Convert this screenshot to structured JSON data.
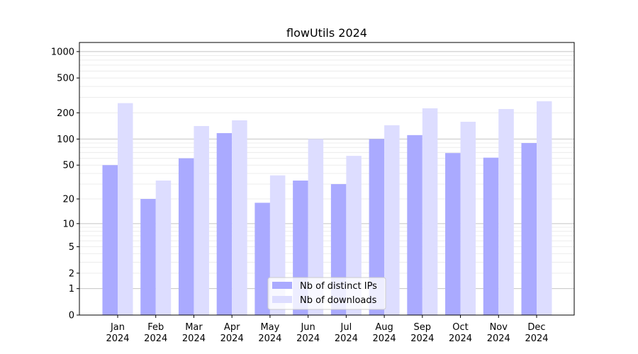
{
  "chart_data": {
    "type": "bar",
    "title": "flowUtils 2024",
    "xlabel": "",
    "ylabel": "",
    "yscale": "log(1+y)",
    "ylim": [
      0,
      1270
    ],
    "yticks": [
      0,
      1,
      2,
      5,
      10,
      20,
      50,
      100,
      200,
      500,
      1000
    ],
    "ytick_labels": [
      "0",
      "1",
      "2",
      "5",
      "10",
      "20",
      "50",
      "100",
      "200",
      "500",
      "1000"
    ],
    "grid": true,
    "legend_position": "bottom-center",
    "categories": [
      [
        "Jan",
        "2024"
      ],
      [
        "Feb",
        "2024"
      ],
      [
        "Mar",
        "2024"
      ],
      [
        "Apr",
        "2024"
      ],
      [
        "May",
        "2024"
      ],
      [
        "Jun",
        "2024"
      ],
      [
        "Jul",
        "2024"
      ],
      [
        "Aug",
        "2024"
      ],
      [
        "Sep",
        "2024"
      ],
      [
        "Oct",
        "2024"
      ],
      [
        "Nov",
        "2024"
      ],
      [
        "Dec",
        "2024"
      ]
    ],
    "series": [
      {
        "name": "Nb of distinct IPs",
        "color": "#aaaaff",
        "values": [
          50,
          20,
          60,
          117,
          18,
          33,
          30,
          100,
          111,
          69,
          61,
          90
        ]
      },
      {
        "name": "Nb of downloads",
        "color": "#ddddff",
        "values": [
          258,
          33,
          141,
          164,
          38,
          100,
          64,
          144,
          225,
          158,
          221,
          271
        ]
      }
    ]
  }
}
